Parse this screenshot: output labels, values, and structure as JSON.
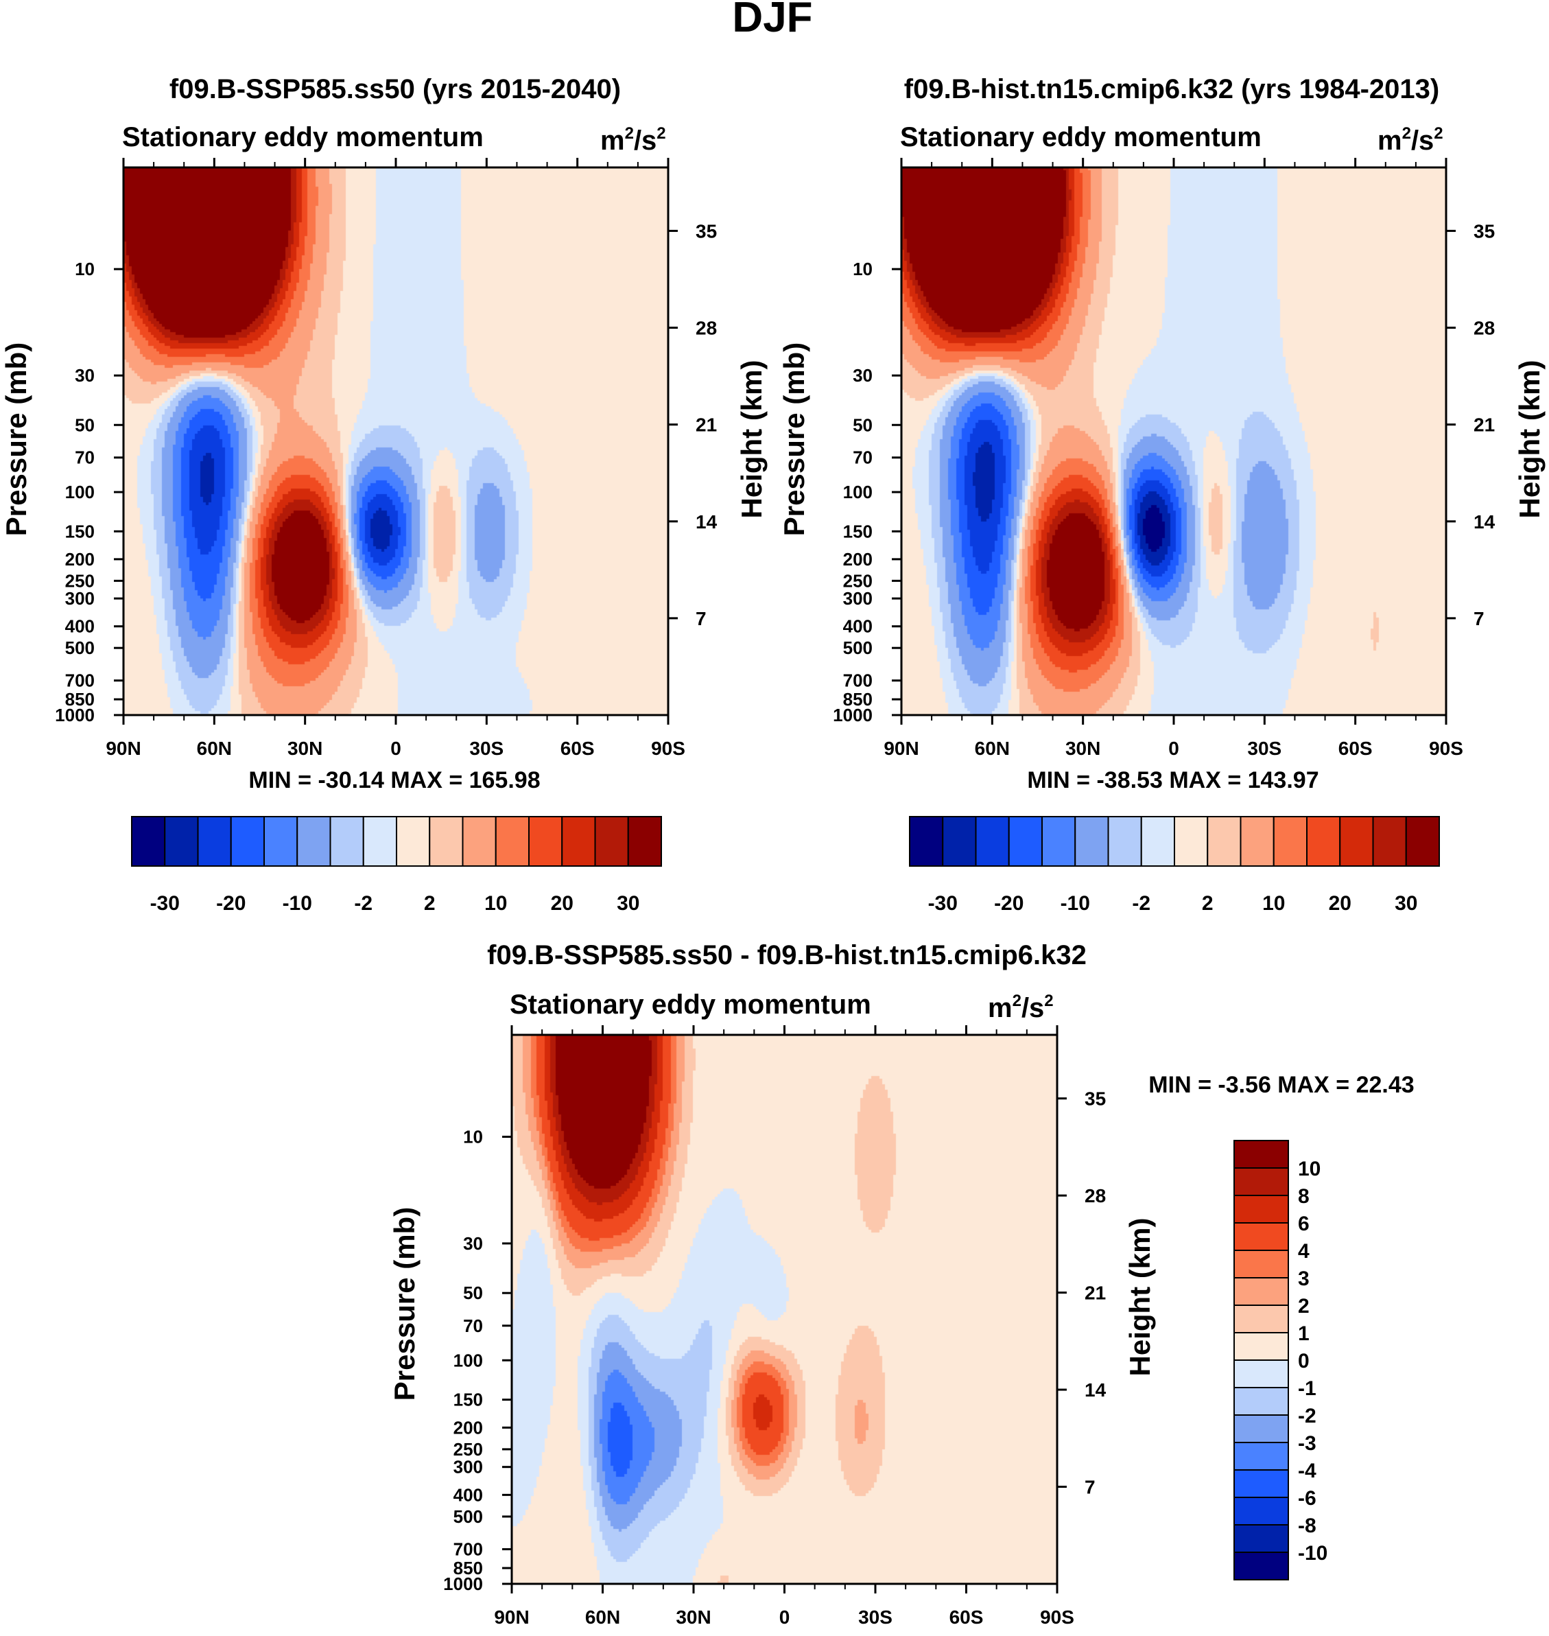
{
  "figure_title": "DJF",
  "colors": {
    "top_scale": [
      "#000080",
      "#0022aa",
      "#0a3de0",
      "#1e5cff",
      "#4a82ff",
      "#7ea3f2",
      "#b3ccfa",
      "#d9e8fc",
      "#fde9d8",
      "#fcc8ad",
      "#fca27e",
      "#fa764a",
      "#f04a20",
      "#d42a0a",
      "#b21a08",
      "#8b0000"
    ],
    "diff_scale": [
      "#000080",
      "#0022aa",
      "#0a3de0",
      "#1e5cff",
      "#4a82ff",
      "#7ea3f2",
      "#b3ccfa",
      "#d9e8fc",
      "#fde9d8",
      "#fcc8ad",
      "#fca27e",
      "#fa764a",
      "#f04a20",
      "#d42a0a",
      "#b21a08",
      "#8b0000"
    ]
  },
  "chart_data": [
    {
      "type": "contour",
      "title": "f09.B-SSP585.ss50 (yrs 2015-2040)",
      "left_string": "Stationary eddy momentum",
      "units_base": "m",
      "units_exp1": "2",
      "units_mid": "/s",
      "units_exp2": "2",
      "ylabel": "Pressure (mb)",
      "ylabel_right": "Height (km)",
      "x_ticks": [
        "90N",
        "60N",
        "30N",
        "0",
        "30S",
        "60S",
        "90S"
      ],
      "x_values": [
        90,
        60,
        30,
        0,
        -30,
        -60,
        -90
      ],
      "p_ticks": [
        "10",
        "30",
        "50",
        "70",
        "100",
        "150",
        "200",
        "250",
        "300",
        "400",
        "500",
        "700",
        "850",
        "1000"
      ],
      "p_values": [
        10,
        30,
        50,
        70,
        100,
        150,
        200,
        250,
        300,
        400,
        500,
        700,
        850,
        1000
      ],
      "ptop": 3.5,
      "h_ticks": [
        "35",
        "28",
        "21",
        "14",
        "7"
      ],
      "h_values": [
        35,
        28,
        21,
        14,
        7
      ],
      "min_max": "MIN = -30.14  MAX = 165.98",
      "colorbar_labels": [
        "-30",
        "-20",
        "-10",
        "-2",
        "2",
        "10",
        "20",
        "30"
      ],
      "colorbar_levels": [
        -30,
        -25,
        -20,
        -15,
        -10,
        -5,
        -2,
        0,
        2,
        5,
        10,
        15,
        20,
        25,
        30
      ],
      "features": [
        {
          "lat": 63,
          "p": 4.5,
          "amp": 170,
          "wlat": 15,
          "wlogp": 0.38
        },
        {
          "lat": 62,
          "p": 70,
          "amp": -26,
          "wlat": 9,
          "wlogp": 0.36
        },
        {
          "lat": 62,
          "p": 300,
          "amp": -12,
          "wlat": 8,
          "wlogp": 0.3
        },
        {
          "lat": 30,
          "p": 200,
          "amp": 35,
          "wlat": 10,
          "wlogp": 0.24
        },
        {
          "lat": 36,
          "p": 330,
          "amp": 12,
          "wlat": 14,
          "wlogp": 0.35
        },
        {
          "lat": 6,
          "p": 150,
          "amp": -30,
          "wlat": 8,
          "wlogp": 0.2
        },
        {
          "lat": -15,
          "p": 150,
          "amp": 6,
          "wlat": 5,
          "wlogp": 0.2
        },
        {
          "lat": -31,
          "p": 150,
          "amp": -8,
          "wlat": 6,
          "wlogp": 0.24
        },
        {
          "lat": 40,
          "p": 30,
          "amp": 2.4,
          "wlat": 10,
          "wlogp": 0.8
        },
        {
          "lat": 28,
          "p": 20,
          "amp": 1.5,
          "wlat": 10,
          "wlogp": 1.3
        },
        {
          "lat": -35,
          "p": 10,
          "amp": 1.2,
          "wlat": 12,
          "wlogp": 0.6
        },
        {
          "lat": 80,
          "p": 400,
          "amp": 1.5,
          "wlat": 8,
          "wlogp": 0.6
        },
        {
          "lat": -65,
          "p": 600,
          "amp": 1.4,
          "wlat": 14,
          "wlogp": 0.6
        },
        {
          "lat": -10,
          "p": 18,
          "amp": -1.4,
          "wlat": 10,
          "wlogp": 0.9
        },
        {
          "lat": -30,
          "p": 900,
          "amp": -1.4,
          "wlat": 10,
          "wlogp": 0.1
        }
      ]
    },
    {
      "type": "contour",
      "title": "f09.B-hist.tn15.cmip6.k32 (yrs 1984-2013)",
      "left_string": "Stationary eddy momentum",
      "units_base": "m",
      "units_exp1": "2",
      "units_mid": "/s",
      "units_exp2": "2",
      "ylabel": "Pressure (mb)",
      "ylabel_right": "Height (km)",
      "x_ticks": [
        "90N",
        "60N",
        "30N",
        "0",
        "30S",
        "60S",
        "90S"
      ],
      "x_values": [
        90,
        60,
        30,
        0,
        -30,
        -60,
        -90
      ],
      "p_ticks": [
        "10",
        "30",
        "50",
        "70",
        "100",
        "150",
        "200",
        "250",
        "300",
        "400",
        "500",
        "700",
        "850",
        "1000"
      ],
      "p_values": [
        10,
        30,
        50,
        70,
        100,
        150,
        200,
        250,
        300,
        400,
        500,
        700,
        850,
        1000
      ],
      "ptop": 3.5,
      "h_ticks": [
        "35",
        "28",
        "21",
        "14",
        "7"
      ],
      "h_values": [
        35,
        28,
        21,
        14,
        7
      ],
      "min_max": "MIN = -38.53  MAX = 143.97",
      "colorbar_labels": [
        "-30",
        "-20",
        "-10",
        "-2",
        "2",
        "10",
        "20",
        "30"
      ],
      "colorbar_levels": [
        -30,
        -25,
        -20,
        -15,
        -10,
        -5,
        -2,
        0,
        2,
        5,
        10,
        15,
        20,
        25,
        30
      ],
      "features": [
        {
          "lat": 63,
          "p": 4.5,
          "amp": 150,
          "wlat": 15,
          "wlogp": 0.38
        },
        {
          "lat": 62,
          "p": 70,
          "amp": -27,
          "wlat": 9,
          "wlogp": 0.36
        },
        {
          "lat": 62,
          "p": 300,
          "amp": -14,
          "wlat": 8,
          "wlogp": 0.3
        },
        {
          "lat": 30,
          "p": 210,
          "amp": 36,
          "wlat": 11,
          "wlogp": 0.26
        },
        {
          "lat": 36,
          "p": 330,
          "amp": 12,
          "wlat": 14,
          "wlogp": 0.35
        },
        {
          "lat": 8,
          "p": 150,
          "amp": -38,
          "wlat": 8,
          "wlogp": 0.22
        },
        {
          "lat": -14,
          "p": 140,
          "amp": 5,
          "wlat": 5,
          "wlogp": 0.22
        },
        {
          "lat": -30,
          "p": 160,
          "amp": -9,
          "wlat": 7,
          "wlogp": 0.28
        },
        {
          "lat": 40,
          "p": 30,
          "amp": 2.4,
          "wlat": 10,
          "wlogp": 0.8
        },
        {
          "lat": -68,
          "p": 120,
          "amp": 1.2,
          "wlat": 6,
          "wlogp": 0.8
        },
        {
          "lat": -45,
          "p": 10,
          "amp": 1.2,
          "wlat": 12,
          "wlogp": 0.6
        },
        {
          "lat": 80,
          "p": 400,
          "amp": 1.5,
          "wlat": 8,
          "wlogp": 0.6
        },
        {
          "lat": -60,
          "p": 650,
          "amp": 1.3,
          "wlat": 14,
          "wlogp": 0.5
        },
        {
          "lat": -25,
          "p": 18,
          "amp": -1.3,
          "wlat": 10,
          "wlogp": 0.9
        },
        {
          "lat": -3,
          "p": 600,
          "amp": -1.3,
          "wlat": 14,
          "wlogp": 0.35
        }
      ]
    },
    {
      "type": "contour",
      "title": "f09.B-SSP585.ss50 - f09.B-hist.tn15.cmip6.k32",
      "left_string": "Stationary eddy momentum",
      "units_base": "m",
      "units_exp1": "2",
      "units_mid": "/s",
      "units_exp2": "2",
      "ylabel": "Pressure (mb)",
      "ylabel_right": "Height (km)",
      "x_ticks": [
        "90N",
        "60N",
        "30N",
        "0",
        "30S",
        "60S",
        "90S"
      ],
      "x_values": [
        90,
        60,
        30,
        0,
        -30,
        -60,
        -90
      ],
      "p_ticks": [
        "10",
        "30",
        "50",
        "70",
        "100",
        "150",
        "200",
        "250",
        "300",
        "400",
        "500",
        "700",
        "850",
        "1000"
      ],
      "p_values": [
        10,
        30,
        50,
        70,
        100,
        150,
        200,
        250,
        300,
        400,
        500,
        700,
        850,
        1000
      ],
      "ptop": 3.5,
      "h_ticks": [
        "35",
        "28",
        "21",
        "14",
        "7"
      ],
      "h_values": [
        35,
        28,
        21,
        14,
        7
      ],
      "min_max": "MIN =  -3.56  MAX =  22.43",
      "colorbar_labels": [
        "10",
        "8",
        "6",
        "4",
        "3",
        "2",
        "1",
        "0",
        "-1",
        "-2",
        "-3",
        "-4",
        "-6",
        "-8",
        "-10"
      ],
      "colorbar_levels": [
        -10,
        -8,
        -6,
        -4,
        -3,
        -2,
        -1,
        0,
        1,
        2,
        3,
        4,
        6,
        8,
        10
      ],
      "features": [
        {
          "lat": 60,
          "p": 4.5,
          "amp": 24,
          "wlat": 12,
          "wlogp": 0.45
        },
        {
          "lat": 55,
          "p": 260,
          "amp": -3.3,
          "wlat": 7,
          "wlogp": 0.3
        },
        {
          "lat": 40,
          "p": 220,
          "amp": -2.4,
          "wlat": 8,
          "wlogp": 0.25
        },
        {
          "lat": 58,
          "p": 90,
          "amp": -1.7,
          "wlat": 6,
          "wlogp": 0.45
        },
        {
          "lat": 80,
          "p": 25,
          "amp": -1.2,
          "wlat": 4,
          "wlogp": 0.5
        },
        {
          "lat": 7,
          "p": 165,
          "amp": 7,
          "wlat": 7,
          "wlogp": 0.2
        },
        {
          "lat": -25,
          "p": 200,
          "amp": 1.8,
          "wlat": 6,
          "wlogp": 0.25
        },
        {
          "lat": 68,
          "p": 500,
          "amp": 1.2,
          "wlat": 6,
          "wlogp": 0.5
        },
        {
          "lat": -30,
          "p": 12,
          "amp": 1.1,
          "wlat": 15,
          "wlogp": 0.8
        },
        {
          "lat": 20,
          "p": 1000,
          "amp": 1.1,
          "wlat": 4,
          "wlogp": 0.1
        },
        {
          "lat": 5,
          "p": 90,
          "amp": -1.2,
          "wlat": 5,
          "wlogp": 0.2
        },
        {
          "lat": 25,
          "p": 90,
          "amp": -1.1,
          "wlat": 6,
          "wlogp": 0.3
        }
      ]
    }
  ]
}
